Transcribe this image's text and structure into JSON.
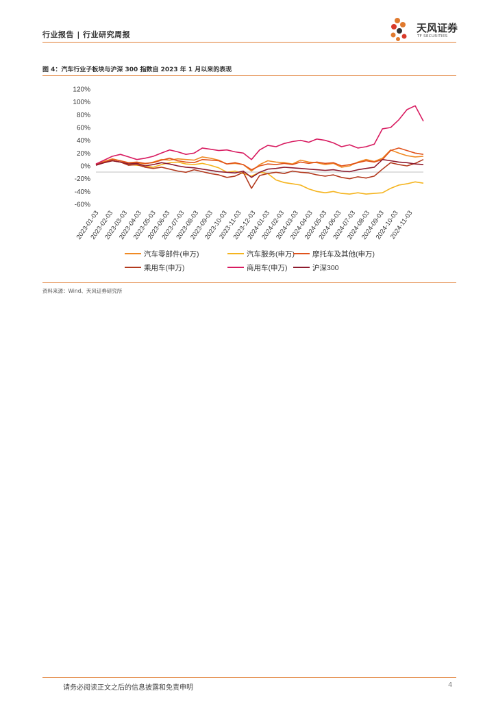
{
  "header": {
    "title": "行业报告 | 行业研究周报",
    "logo_cn": "天风证券",
    "logo_en": "TF SECURITIES"
  },
  "figure": {
    "caption": "图 4：汽车行业子板块与沪深 300 指数自 2023 年 1 月以来的表现",
    "source": "资料来源：Wind、天风证券研究所"
  },
  "footer": {
    "disclaimer": "请务必阅读正文之后的信息披露和免责申明",
    "page": "4"
  },
  "colors": {
    "accent": "#e07a2e"
  },
  "chart_data": {
    "type": "line",
    "title": "汽车行业子板块与沪深 300 指数自 2023 年 1 月以来的表现",
    "xlabel": "",
    "ylabel": "",
    "ylim": [
      -0.6,
      1.2
    ],
    "yticks": [
      -0.6,
      -0.4,
      -0.2,
      0,
      0.2,
      0.4,
      0.6,
      0.8,
      1.0,
      1.2
    ],
    "ytick_labels": [
      "-60%",
      "-40%",
      "-20%",
      "0%",
      "20%",
      "40%",
      "60%",
      "80%",
      "100%",
      "120%"
    ],
    "x_tick_labels": [
      "2023-01-03",
      "2023-02-03",
      "2023-03-03",
      "2023-04-03",
      "2023-05-03",
      "2023-06-03",
      "2023-07-03",
      "2023-08-03",
      "2023-09-03",
      "2023-10-03",
      "2023-11-03",
      "2023-12-03",
      "2024-01-03",
      "2024-02-03",
      "2024-03-03",
      "2024-04-03",
      "2024-05-03",
      "2024-06-03",
      "2024-07-03",
      "2024-08-03",
      "2024-09-03",
      "2024-10-03",
      "2024-11-03"
    ],
    "grid": false,
    "legend_position": "bottom",
    "series": [
      {
        "name": "汽车零部件(申万)",
        "color": "#f08a24",
        "values": [
          0.02,
          0.07,
          0.11,
          0.08,
          0.04,
          0.05,
          0.03,
          0.06,
          0.1,
          0.09,
          0.11,
          0.1,
          0.09,
          0.14,
          0.12,
          0.09,
          0.03,
          0.04,
          0.02,
          -0.08,
          0.02,
          0.08,
          0.06,
          0.05,
          0.03,
          0.09,
          0.06,
          0.05,
          0.02,
          0.04,
          -0.02,
          0.0,
          0.06,
          0.1,
          0.07,
          0.12,
          0.25,
          0.2,
          0.16,
          0.14,
          0.15
        ]
      },
      {
        "name": "汽车服务(申万)",
        "color": "#f5b41e",
        "values": [
          0.03,
          0.05,
          0.08,
          0.06,
          0.02,
          0.01,
          0.0,
          -0.02,
          0.02,
          0.05,
          0.06,
          0.03,
          0.02,
          0.04,
          0.01,
          -0.03,
          -0.1,
          -0.08,
          -0.12,
          -0.16,
          -0.1,
          -0.12,
          -0.22,
          -0.26,
          -0.28,
          -0.3,
          -0.36,
          -0.4,
          -0.42,
          -0.4,
          -0.43,
          -0.44,
          -0.42,
          -0.44,
          -0.43,
          -0.42,
          -0.35,
          -0.3,
          -0.28,
          -0.25,
          -0.27
        ]
      },
      {
        "name": "摩托车及其他(申万)",
        "color": "#e0531c",
        "values": [
          0.02,
          0.06,
          0.1,
          0.08,
          0.05,
          0.06,
          0.04,
          0.05,
          0.09,
          0.12,
          0.08,
          0.06,
          0.05,
          0.1,
          0.09,
          0.08,
          0.03,
          0.05,
          0.02,
          -0.06,
          0.0,
          0.03,
          0.02,
          0.04,
          0.02,
          0.06,
          0.04,
          0.06,
          0.04,
          0.05,
          0.0,
          0.02,
          0.05,
          0.08,
          0.06,
          0.1,
          0.24,
          0.28,
          0.24,
          0.2,
          0.18
        ]
      },
      {
        "name": "乘用车(申万)",
        "color": "#b33a1e",
        "values": [
          0.02,
          0.05,
          0.08,
          0.06,
          0.01,
          0.02,
          -0.02,
          -0.04,
          -0.02,
          -0.05,
          -0.08,
          -0.1,
          -0.06,
          -0.09,
          -0.12,
          -0.14,
          -0.18,
          -0.16,
          -0.1,
          -0.35,
          -0.15,
          -0.12,
          -0.1,
          -0.12,
          -0.08,
          -0.1,
          -0.11,
          -0.14,
          -0.16,
          -0.14,
          -0.18,
          -0.2,
          -0.17,
          -0.19,
          -0.16,
          -0.05,
          0.05,
          0.02,
          0.0,
          0.04,
          0.1
        ]
      },
      {
        "name": "商用车(申万)",
        "color": "#d81b60",
        "values": [
          0.03,
          0.09,
          0.15,
          0.18,
          0.14,
          0.1,
          0.12,
          0.15,
          0.2,
          0.25,
          0.22,
          0.18,
          0.2,
          0.28,
          0.26,
          0.24,
          0.25,
          0.22,
          0.2,
          0.1,
          0.25,
          0.32,
          0.3,
          0.35,
          0.38,
          0.4,
          0.37,
          0.42,
          0.4,
          0.36,
          0.3,
          0.33,
          0.28,
          0.3,
          0.34,
          0.58,
          0.6,
          0.72,
          0.88,
          0.94,
          0.7
        ]
      },
      {
        "name": "沪深300",
        "color": "#8e1b2e",
        "values": [
          0.01,
          0.05,
          0.08,
          0.06,
          0.03,
          0.04,
          0.0,
          0.02,
          0.05,
          0.03,
          0.0,
          -0.02,
          -0.03,
          -0.05,
          -0.07,
          -0.09,
          -0.1,
          -0.11,
          -0.08,
          -0.18,
          -0.1,
          -0.05,
          -0.04,
          -0.02,
          -0.03,
          -0.04,
          -0.05,
          -0.06,
          -0.07,
          -0.06,
          -0.08,
          -0.09,
          -0.06,
          -0.04,
          -0.02,
          0.1,
          0.08,
          0.06,
          0.05,
          0.03,
          0.02
        ]
      }
    ]
  }
}
